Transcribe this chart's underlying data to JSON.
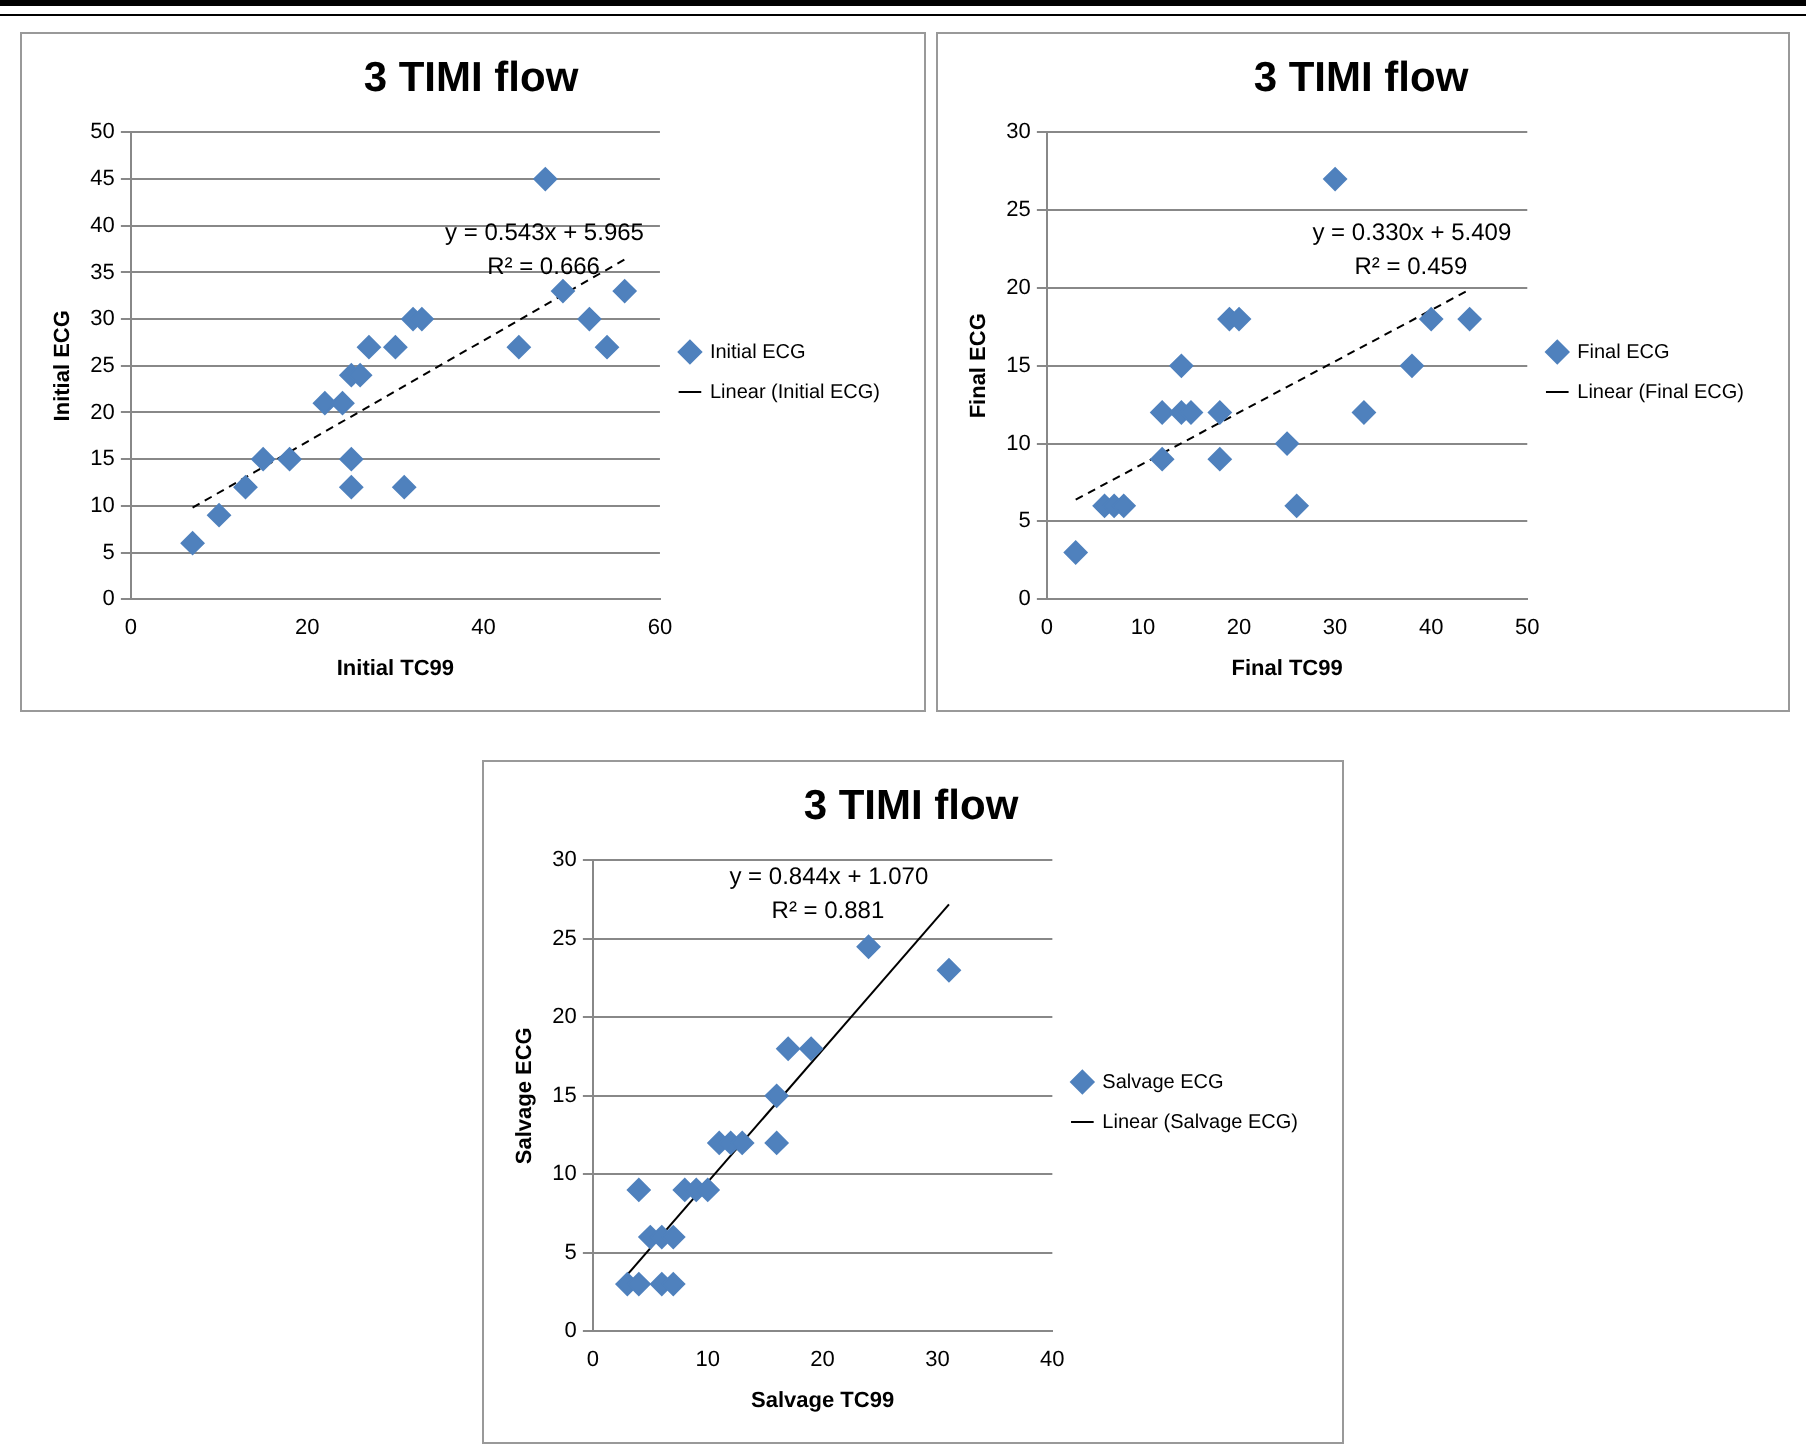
{
  "chart_data": [
    {
      "type": "scatter",
      "title": "3 TIMI flow",
      "xlabel": "Initial TC99",
      "ylabel": "Initial ECG",
      "xlim": [
        0,
        60
      ],
      "xticks": [
        0,
        20,
        40,
        60
      ],
      "ylim": [
        0,
        50
      ],
      "yticks": [
        0,
        5,
        10,
        15,
        20,
        25,
        30,
        35,
        40,
        45,
        50
      ],
      "grid": "y",
      "legend": "right",
      "annotations": [
        "y = 0.543x + 5.965",
        "R² = 0.666"
      ],
      "series": [
        {
          "name": "Initial ECG",
          "type": "scatter",
          "color": "#4f81bd",
          "marker": "diamond",
          "x": [
            7,
            10,
            13,
            15,
            18,
            22,
            24,
            25,
            25,
            25,
            26,
            27,
            30,
            31,
            32,
            33,
            44,
            47,
            49,
            52,
            54,
            56
          ],
          "values": [
            6,
            9,
            12,
            15,
            15,
            21,
            21,
            12,
            15,
            24,
            24,
            27,
            27,
            12,
            30,
            30,
            27,
            45,
            33,
            30,
            27,
            33
          ]
        },
        {
          "name": "Linear (Initial ECG)",
          "type": "line",
          "color": "#000000",
          "marker": "none",
          "line_style": "dashed",
          "x": [
            7,
            56
          ],
          "values": [
            9.8,
            36.4
          ]
        }
      ]
    },
    {
      "type": "scatter",
      "title": "3 TIMI flow",
      "xlabel": "Final TC99",
      "ylabel": "Final ECG",
      "xlim": [
        0,
        50
      ],
      "xticks": [
        0,
        10,
        20,
        30,
        40,
        50
      ],
      "ylim": [
        0,
        30
      ],
      "yticks": [
        0,
        5,
        10,
        15,
        20,
        25,
        30
      ],
      "grid": "y",
      "legend": "right",
      "annotations": [
        "y = 0.330x + 5.409",
        "R² = 0.459"
      ],
      "series": [
        {
          "name": "Final ECG",
          "type": "scatter",
          "color": "#4f81bd",
          "marker": "diamond",
          "x": [
            3,
            6,
            7,
            8,
            12,
            12,
            14,
            14,
            15,
            18,
            18,
            19,
            20,
            25,
            26,
            30,
            33,
            38,
            40,
            44
          ],
          "values": [
            3,
            6,
            6,
            6,
            12,
            9,
            15,
            12,
            12,
            12,
            9,
            18,
            18,
            10,
            6,
            27,
            12,
            15,
            18,
            18
          ]
        },
        {
          "name": "Linear (Final ECG)",
          "type": "line",
          "color": "#000000",
          "marker": "none",
          "line_style": "dashed",
          "x": [
            3,
            44
          ],
          "values": [
            6.4,
            19.9
          ]
        }
      ]
    },
    {
      "type": "scatter",
      "title": "3 TIMI flow",
      "xlabel": "Salvage TC99",
      "ylabel": "Salvage ECG",
      "xlim": [
        0,
        40
      ],
      "xticks": [
        0,
        10,
        20,
        30,
        40
      ],
      "ylim": [
        0,
        30
      ],
      "yticks": [
        0,
        5,
        10,
        15,
        20,
        25,
        30
      ],
      "grid": "y",
      "legend": "right",
      "annotations": [
        "y = 0.844x + 1.070",
        "R² = 0.881"
      ],
      "series": [
        {
          "name": "Salvage ECG",
          "type": "scatter",
          "color": "#4f81bd",
          "marker": "diamond",
          "x": [
            3,
            4,
            4,
            5,
            6,
            7,
            6,
            7,
            8,
            9,
            10,
            11,
            12,
            13,
            16,
            16,
            17,
            19,
            24,
            31
          ],
          "values": [
            3,
            3,
            9,
            6,
            6,
            6,
            3,
            3,
            9,
            9,
            9,
            12,
            12,
            12,
            12,
            15,
            18,
            18,
            24.5,
            23
          ]
        },
        {
          "name": "Linear (Salvage ECG)",
          "type": "line",
          "color": "#000000",
          "marker": "none",
          "line_style": "solid",
          "x": [
            3,
            31
          ],
          "values": [
            3.6,
            27.2
          ]
        }
      ]
    }
  ]
}
